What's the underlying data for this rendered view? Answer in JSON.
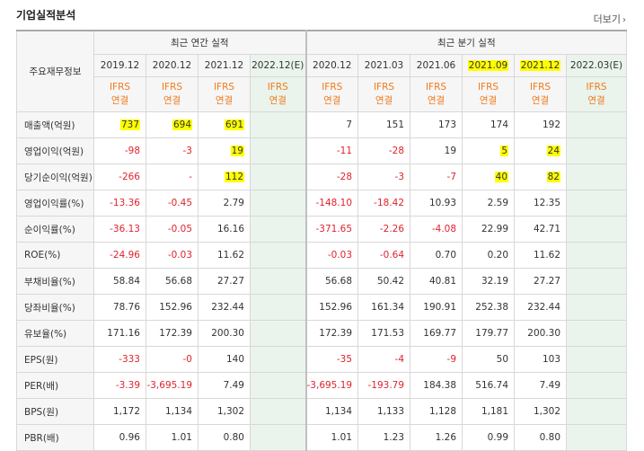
{
  "page": {
    "title": "기업실적분석",
    "more_label": "더보기",
    "more_icon": "chevron-right-icon"
  },
  "table": {
    "corner_label": "주요재무정보",
    "group_annual": "최근 연간 실적",
    "group_quarterly": "최근 분기 실적",
    "periods": [
      {
        "label": "2019.12",
        "highlight": false,
        "forecast": false
      },
      {
        "label": "2020.12",
        "highlight": false,
        "forecast": false
      },
      {
        "label": "2021.12",
        "highlight": false,
        "forecast": false
      },
      {
        "label": "2022.12(E)",
        "highlight": false,
        "forecast": true
      },
      {
        "label": "2020.12",
        "highlight": false,
        "forecast": false
      },
      {
        "label": "2021.03",
        "highlight": false,
        "forecast": false
      },
      {
        "label": "2021.06",
        "highlight": false,
        "forecast": false
      },
      {
        "label": "2021.09",
        "highlight": true,
        "forecast": false
      },
      {
        "label": "2021.12",
        "highlight": true,
        "forecast": false
      },
      {
        "label": "2022.03(E)",
        "highlight": false,
        "forecast": true
      }
    ],
    "ifrs_line1": "IFRS",
    "ifrs_line2": "연결",
    "rows": [
      {
        "label": "매출액(억원)",
        "values": [
          "737",
          "694",
          "691",
          "",
          "7",
          "151",
          "173",
          "174",
          "192",
          ""
        ],
        "hl": [
          true,
          true,
          true,
          false,
          false,
          false,
          false,
          false,
          false,
          false
        ]
      },
      {
        "label": "영업이익(억원)",
        "values": [
          "-98",
          "-3",
          "19",
          "",
          "-11",
          "-28",
          "19",
          "5",
          "24",
          ""
        ],
        "hl": [
          false,
          false,
          true,
          false,
          false,
          false,
          false,
          true,
          true,
          false
        ]
      },
      {
        "label": "당기순이익(억원)",
        "values": [
          "-266",
          "-",
          "112",
          "",
          "-28",
          "-3",
          "-7",
          "40",
          "82",
          ""
        ],
        "hl": [
          false,
          false,
          true,
          false,
          false,
          false,
          false,
          true,
          true,
          false
        ]
      },
      {
        "label": "영업이익률(%)",
        "values": [
          "-13.36",
          "-0.45",
          "2.79",
          "",
          "-148.10",
          "-18.42",
          "10.93",
          "2.59",
          "12.35",
          ""
        ],
        "hl": []
      },
      {
        "label": "순이익률(%)",
        "values": [
          "-36.13",
          "-0.05",
          "16.16",
          "",
          "-371.65",
          "-2.26",
          "-4.08",
          "22.99",
          "42.71",
          ""
        ],
        "hl": []
      },
      {
        "label": "ROE(%)",
        "values": [
          "-24.96",
          "-0.03",
          "11.62",
          "",
          "-0.03",
          "-0.64",
          "0.70",
          "0.20",
          "11.62",
          ""
        ],
        "hl": []
      },
      {
        "label": "부채비율(%)",
        "values": [
          "58.84",
          "56.68",
          "27.27",
          "",
          "56.68",
          "50.42",
          "40.81",
          "32.19",
          "27.27",
          ""
        ],
        "hl": []
      },
      {
        "label": "당좌비율(%)",
        "values": [
          "78.76",
          "152.96",
          "232.44",
          "",
          "152.96",
          "161.34",
          "190.91",
          "252.38",
          "232.44",
          ""
        ],
        "hl": []
      },
      {
        "label": "유보율(%)",
        "values": [
          "171.16",
          "172.39",
          "200.30",
          "",
          "172.39",
          "171.53",
          "169.77",
          "179.77",
          "200.30",
          ""
        ],
        "hl": []
      },
      {
        "label": "EPS(원)",
        "values": [
          "-333",
          "-0",
          "140",
          "",
          "-35",
          "-4",
          "-9",
          "50",
          "103",
          ""
        ],
        "hl": []
      },
      {
        "label": "PER(배)",
        "values": [
          "-3.39",
          "-3,695.19",
          "7.49",
          "",
          "-3,695.19",
          "-193.79",
          "184.38",
          "516.74",
          "7.49",
          ""
        ],
        "hl": []
      },
      {
        "label": "BPS(원)",
        "values": [
          "1,172",
          "1,134",
          "1,302",
          "",
          "1,134",
          "1,133",
          "1,128",
          "1,181",
          "1,302",
          ""
        ],
        "hl": []
      },
      {
        "label": "PBR(배)",
        "values": [
          "0.96",
          "1.01",
          "0.80",
          "",
          "1.01",
          "1.23",
          "1.26",
          "0.99",
          "0.80",
          ""
        ],
        "hl": []
      }
    ],
    "colors": {
      "negative": "#e0232e",
      "ifrs": "#ef7a1c",
      "forecast_bg": "#eaf4ec",
      "highlight": "#ffff00"
    }
  }
}
